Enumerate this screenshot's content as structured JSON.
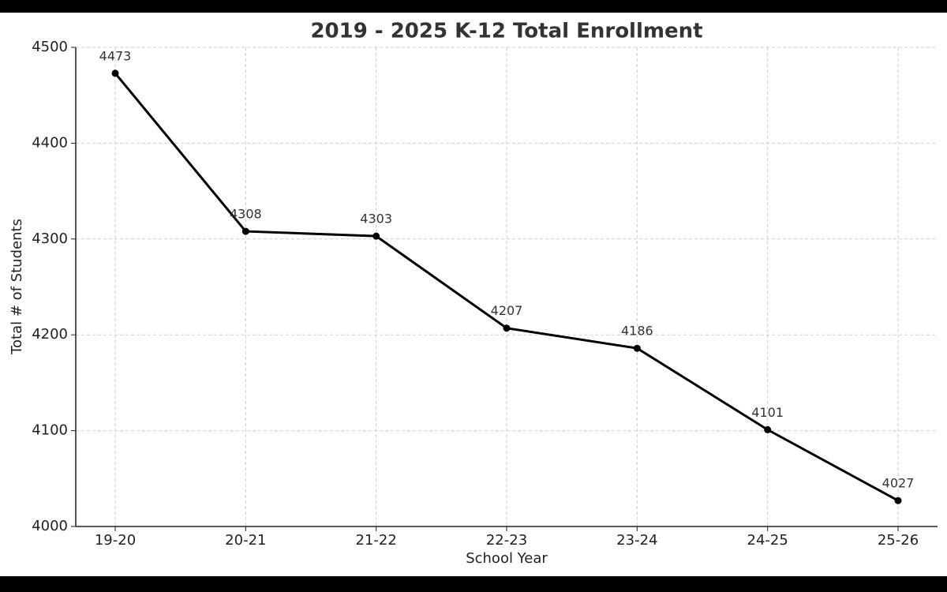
{
  "chart_data": {
    "type": "line",
    "title": "2019 - 2025 K-12 Total Enrollment",
    "x_label": "School Year",
    "y_label": "Total # of Students",
    "categories": [
      "19-20",
      "20-21",
      "21-22",
      "22-23",
      "23-24",
      "24-25",
      "25-26"
    ],
    "values": [
      4473,
      4308,
      4303,
      4207,
      4186,
      4101,
      4027
    ],
    "color": "#000000",
    "ylim": [
      4000,
      4500
    ],
    "yticks": [
      4000,
      4100,
      4200,
      4300,
      4400,
      4500
    ],
    "grid": true
  }
}
